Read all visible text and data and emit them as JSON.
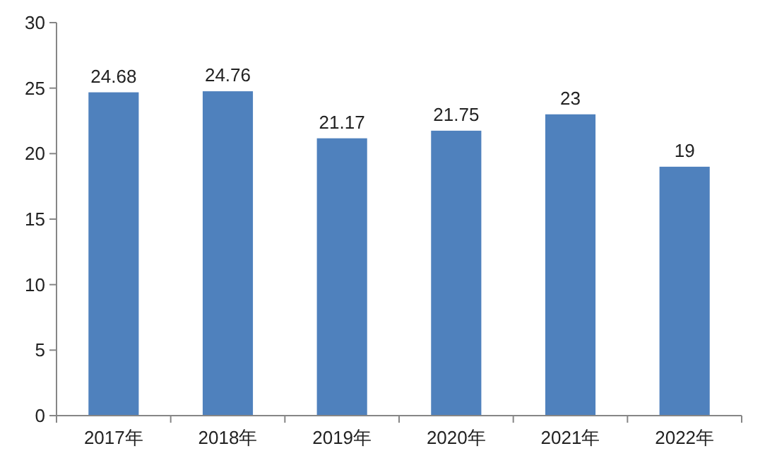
{
  "chart_data": {
    "type": "bar",
    "categories": [
      "2017年",
      "2018年",
      "2019年",
      "2020年",
      "2021年",
      "2022年"
    ],
    "values": [
      24.68,
      24.76,
      21.17,
      21.75,
      23,
      19
    ],
    "color": "#4f81bd",
    "ylim": [
      0,
      30
    ],
    "yticks": [
      0,
      5,
      10,
      15,
      20,
      25,
      30
    ],
    "data_labels": true
  }
}
